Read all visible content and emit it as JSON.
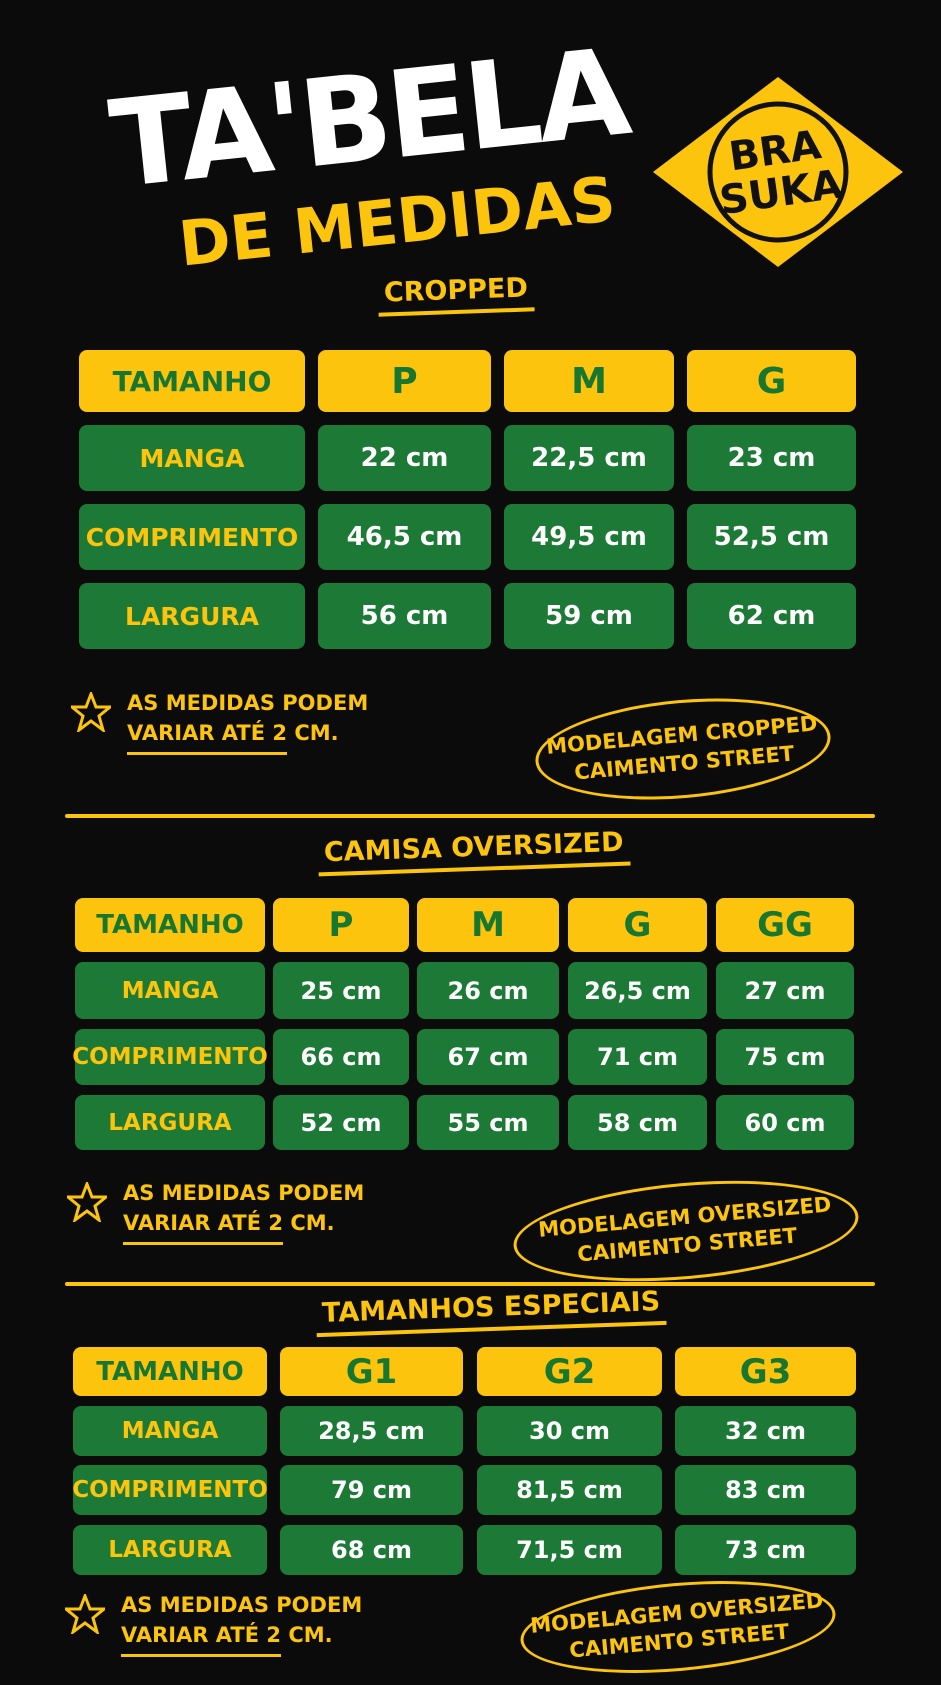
{
  "header": {
    "title": "TA'BELA",
    "subtitle": "DE MEDIDAS",
    "logo": [
      "BRA",
      "SUKA"
    ]
  },
  "sections": [
    {
      "title": "CROPPED",
      "header": [
        "TAMANHO",
        "P",
        "M",
        "G"
      ],
      "rows": [
        [
          "MANGA",
          "22 cm",
          "22,5 cm",
          "23 cm"
        ],
        [
          "COMPRIMENTO",
          "46,5 cm",
          "49,5 cm",
          "52,5 cm"
        ],
        [
          "LARGURA",
          "56 cm",
          "59 cm",
          "62 cm"
        ]
      ],
      "note": [
        "AS MEDIDAS PODEM",
        "VARIAR ATÉ 2 CM."
      ],
      "badge": [
        "MODELAGEM CROPPED",
        "CAIMENTO STREET"
      ]
    },
    {
      "title": "CAMISA OVERSIZED",
      "header": [
        "TAMANHO",
        "P",
        "M",
        "G",
        "GG"
      ],
      "rows": [
        [
          "MANGA",
          "25 cm",
          "26 cm",
          "26,5 cm",
          "27 cm"
        ],
        [
          "COMPRIMENTO",
          "66 cm",
          "67 cm",
          "71 cm",
          "75 cm"
        ],
        [
          "LARGURA",
          "52 cm",
          "55 cm",
          "58 cm",
          "60 cm"
        ]
      ],
      "note": [
        "AS MEDIDAS PODEM",
        "VARIAR ATÉ 2 CM."
      ],
      "badge": [
        "MODELAGEM OVERSIZED",
        "CAIMENTO STREET"
      ]
    },
    {
      "title": "TAMANHOS ESPECIAIS",
      "header": [
        "TAMANHO",
        "G1",
        "G2",
        "G3"
      ],
      "rows": [
        [
          "MANGA",
          "28,5 cm",
          "30 cm",
          "32 cm"
        ],
        [
          "COMPRIMENTO",
          "79 cm",
          "81,5 cm",
          "83 cm"
        ],
        [
          "LARGURA",
          "68 cm",
          "71,5 cm",
          "73 cm"
        ]
      ],
      "note": [
        "AS MEDIDAS PODEM",
        "VARIAR ATÉ 2 CM."
      ],
      "badge": [
        "MODELAGEM OVERSIZED",
        "CAIMENTO STREET"
      ]
    }
  ]
}
